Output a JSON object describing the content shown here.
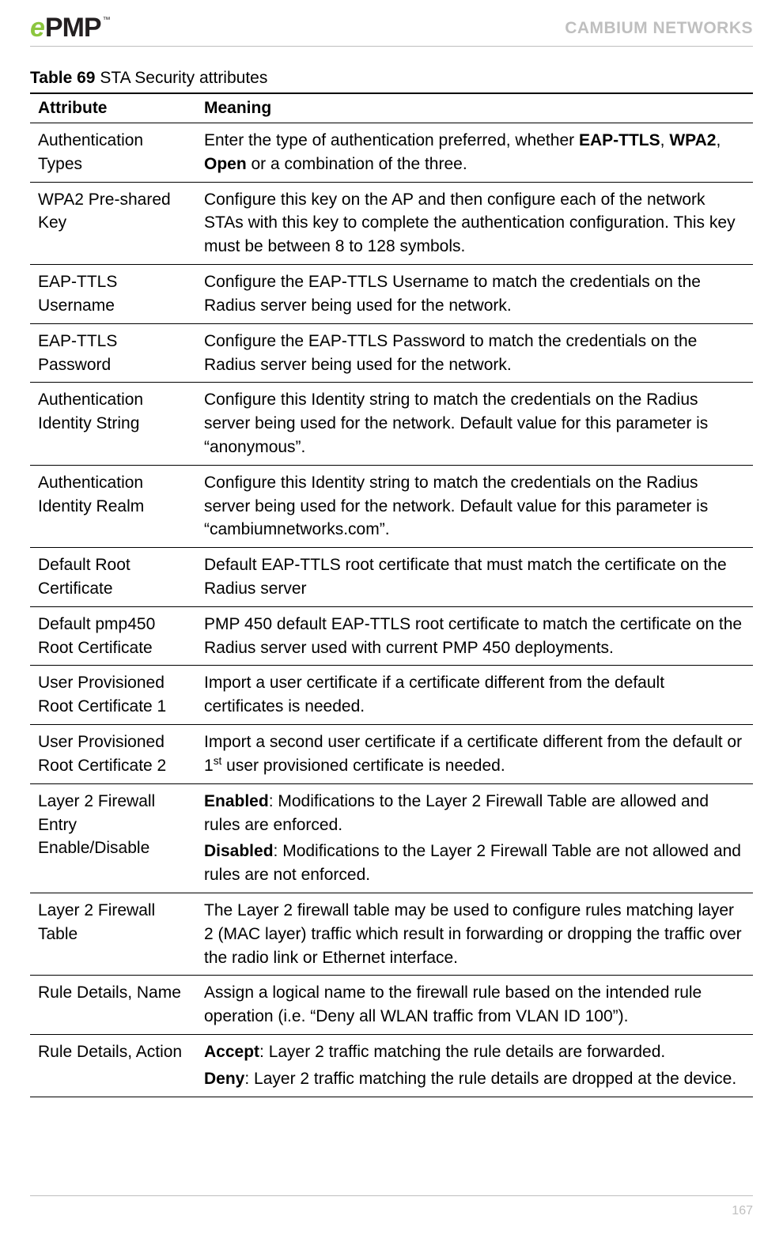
{
  "header": {
    "logo_e": "e",
    "logo_pmp": "PMP",
    "logo_tm": "™",
    "brand": "CAMBIUM NETWORKS"
  },
  "caption": {
    "prefix": "Table 69",
    "title": "  STA Security attributes"
  },
  "columns": {
    "attribute": "Attribute",
    "meaning": "Meaning"
  },
  "rows": [
    {
      "attr": "Authentication Types",
      "meaning_html": "Enter the type of authentication preferred, whether <span class=\"b\">EAP-TTLS</span>, <span class=\"b\">WPA2</span>, <span class=\"b\">Open</span> or a combination of the three."
    },
    {
      "attr": "WPA2 Pre-shared Key",
      "meaning_html": "Configure this key on the AP and then configure each of the network STAs with this key to complete the authentication configuration. This key must be between 8 to 128 symbols."
    },
    {
      "attr": "EAP-TTLS Username",
      "meaning_html": "Configure the EAP-TTLS Username to match the credentials on the Radius server being used for the network."
    },
    {
      "attr": "EAP-TTLS Password",
      "meaning_html": "Configure the EAP-TTLS Password to match the credentials on the Radius server being used for the network."
    },
    {
      "attr": "Authentication Identity String",
      "meaning_html": "Configure this Identity string to match the credentials on the Radius server being used for the network. Default value for this parameter is “anonymous”."
    },
    {
      "attr": "Authentication Identity Realm",
      "meaning_html": "Configure this Identity string to match the credentials on the Radius server being used for the network. Default value for this parameter is “cambiumnetworks.com”."
    },
    {
      "attr": "Default Root Certificate",
      "meaning_html": "Default EAP-TTLS root certificate that must match the certificate on the Radius server"
    },
    {
      "attr": "Default pmp450 Root Certificate",
      "meaning_html": "PMP 450 default EAP-TTLS root certificate to match the certificate on the Radius server used with current PMP 450 deployments."
    },
    {
      "attr": "User Provisioned Root Certificate 1",
      "meaning_html": "Import a user certificate if a certificate different from the default certificates is needed."
    },
    {
      "attr": "User Provisioned Root Certificate 2",
      "meaning_html": "Import a second user certificate if a certificate different from the default or 1<sup>st</sup> user provisioned certificate is needed."
    },
    {
      "attr": "Layer 2 Firewall Entry Enable/Disable",
      "meaning_html": "<p><span class=\"b\">Enabled</span>:  Modifications to the Layer 2 Firewall Table are allowed and rules are enforced.</p><p><span class=\"b\">Disabled</span>:  Modifications to the Layer 2 Firewall Table are not allowed and rules are not enforced.</p>"
    },
    {
      "attr": "Layer 2 Firewall Table",
      "meaning_html": "The Layer 2 firewall table may be used to configure rules matching layer 2 (MAC layer) traffic which result in forwarding or dropping the traffic over the radio link or Ethernet interface."
    },
    {
      "attr": "Rule Details, Name",
      "meaning_html": "Assign a logical name to the firewall rule based on the intended rule operation (i.e. “Deny all WLAN traffic from VLAN ID 100”)."
    },
    {
      "attr": "Rule Details, Action",
      "meaning_html": "<p><span class=\"b\">Accept</span>: Layer 2 traffic matching the rule details are forwarded.</p><p><span class=\"b\">Deny</span>:  Layer 2 traffic matching the rule details are dropped at the device.</p>"
    }
  ],
  "footer": {
    "page": "167"
  }
}
